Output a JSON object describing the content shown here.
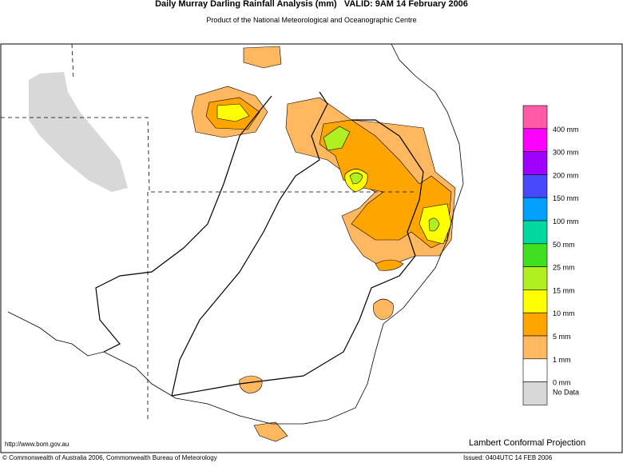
{
  "header": {
    "title": "Daily Murray Darling Rainfall Analysis (mm)   VALID: 9AM 14 February 2006",
    "subtitle": "Product of the National Meteorological and Oceanographic Centre"
  },
  "legend": {
    "colors": [
      "#ff5aa8",
      "#ff00ff",
      "#a000ff",
      "#4848ff",
      "#00a0ff",
      "#00d8a0",
      "#40e020",
      "#b0f020",
      "#ffff00",
      "#ffa500",
      "#ffb860",
      "#ffffff",
      "#d8d8d8"
    ],
    "labels": [
      "400 mm",
      "300 mm",
      "200 mm",
      "150 mm",
      "100 mm",
      "50 mm",
      "25 mm",
      "15 mm",
      "10 mm",
      "5 mm",
      "1 mm",
      "0 mm",
      "No Data"
    ]
  },
  "footer": {
    "url": "http://www.bom.gov.au",
    "projection": "Lambert Conformal Projection",
    "copyright": "© Commonwealth of Australia 2006, Commonwealth Bureau of Meteorology",
    "issued": "Issued: 0404UTC 14 FEB 2006"
  }
}
